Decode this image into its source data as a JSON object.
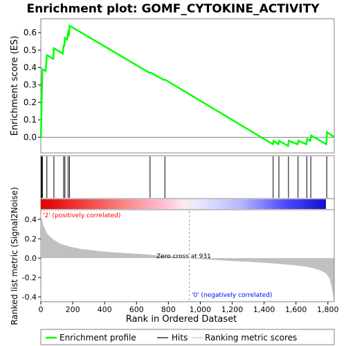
{
  "chart_data": {
    "type": "line",
    "title": "Enrichment plot: GOMF_CYTOKINE_ACTIVITY",
    "xlabel": "Rank in Ordered Dataset",
    "ylabel_top": "Enrichment score (ES)",
    "ylabel_bottom": "Ranked list metric (Signal2Noise)",
    "xlim": [
      0,
      1840
    ],
    "x_ticks": [
      0,
      200,
      400,
      600,
      800,
      1000,
      1200,
      1400,
      1600,
      1800
    ],
    "x_tick_labels": [
      "0",
      "200",
      "400",
      "600",
      "800",
      "1,000",
      "1,200",
      "1,400",
      "1,600",
      "1,800"
    ],
    "es_ylim": [
      -0.09,
      0.68
    ],
    "es_ticks": [
      0.0,
      0.1,
      0.2,
      0.3,
      0.4,
      0.5,
      0.6
    ],
    "es_tick_labels": [
      "0.0",
      "0.1",
      "0.2",
      "0.3",
      "0.4",
      "0.5",
      "0.6"
    ],
    "metric_ylim": [
      -0.45,
      0.5
    ],
    "metric_ticks": [
      0.4,
      0.2,
      0.0,
      -0.2,
      -0.4
    ],
    "metric_tick_labels": [
      "0.4",
      "0.2",
      "0.0",
      "-0.2",
      "-0.4"
    ],
    "enrichment_profile": {
      "name": "Enrichment profile",
      "color": "#00ff00",
      "points": [
        [
          0,
          0.0
        ],
        [
          3,
          0.1
        ],
        [
          6,
          0.25
        ],
        [
          10,
          0.39
        ],
        [
          30,
          0.38
        ],
        [
          38,
          0.47
        ],
        [
          78,
          0.45
        ],
        [
          82,
          0.51
        ],
        [
          138,
          0.48
        ],
        [
          143,
          0.53
        ],
        [
          147,
          0.52
        ],
        [
          151,
          0.57
        ],
        [
          165,
          0.56
        ],
        [
          171,
          0.6
        ],
        [
          176,
          0.59
        ],
        [
          180,
          0.64
        ],
        [
          680,
          0.37
        ],
        [
          690,
          0.37
        ],
        [
          770,
          0.33
        ],
        [
          780,
          0.33
        ],
        [
          1455,
          -0.04
        ],
        [
          1460,
          -0.02
        ],
        [
          1490,
          -0.04
        ],
        [
          1495,
          -0.02
        ],
        [
          1550,
          -0.05
        ],
        [
          1555,
          -0.02
        ],
        [
          1610,
          -0.04
        ],
        [
          1615,
          -0.02
        ],
        [
          1665,
          -0.04
        ],
        [
          1670,
          -0.01
        ],
        [
          1690,
          -0.02
        ],
        [
          1695,
          0.01
        ],
        [
          1790,
          -0.04
        ],
        [
          1795,
          0.03
        ],
        [
          1840,
          0.0
        ]
      ]
    },
    "hits": {
      "name": "Hits",
      "color": "#000000",
      "positions": [
        3,
        6,
        10,
        38,
        82,
        143,
        151,
        171,
        180,
        685,
        778,
        1457,
        1493,
        1553,
        1613,
        1668,
        1693,
        1793
      ]
    },
    "ranking_metric": {
      "name": "Ranking metric scores",
      "color": "#c0c0c0",
      "points": [
        [
          0,
          0.45
        ],
        [
          15,
          0.34
        ],
        [
          40,
          0.25
        ],
        [
          80,
          0.19
        ],
        [
          120,
          0.15
        ],
        [
          180,
          0.12
        ],
        [
          250,
          0.095
        ],
        [
          350,
          0.075
        ],
        [
          450,
          0.06
        ],
        [
          550,
          0.05
        ],
        [
          650,
          0.04
        ],
        [
          750,
          0.025
        ],
        [
          850,
          0.012
        ],
        [
          931,
          0.0
        ],
        [
          1000,
          -0.01
        ],
        [
          1100,
          -0.02
        ],
        [
          1200,
          -0.03
        ],
        [
          1300,
          -0.038
        ],
        [
          1400,
          -0.048
        ],
        [
          1500,
          -0.06
        ],
        [
          1600,
          -0.075
        ],
        [
          1650,
          -0.085
        ],
        [
          1700,
          -0.1
        ],
        [
          1750,
          -0.125
        ],
        [
          1790,
          -0.16
        ],
        [
          1810,
          -0.21
        ],
        [
          1825,
          -0.3
        ],
        [
          1838,
          -0.43
        ]
      ]
    },
    "zero_cross": 931,
    "annotations": {
      "zero_cross_label": "Zero cross at 931",
      "positive_label": "'2' (positively correlated)",
      "negative_label": "'0' (negatively correlated)",
      "positive_color": "#ff0000",
      "negative_color": "#0000ff"
    },
    "legend_placement": "bottom",
    "legend": [
      {
        "label": "Enrichment profile",
        "color": "#00ff00"
      },
      {
        "label": "Hits",
        "color": "#000000"
      },
      {
        "label": "Ranking metric scores",
        "color": "#c0c0c0"
      }
    ]
  }
}
